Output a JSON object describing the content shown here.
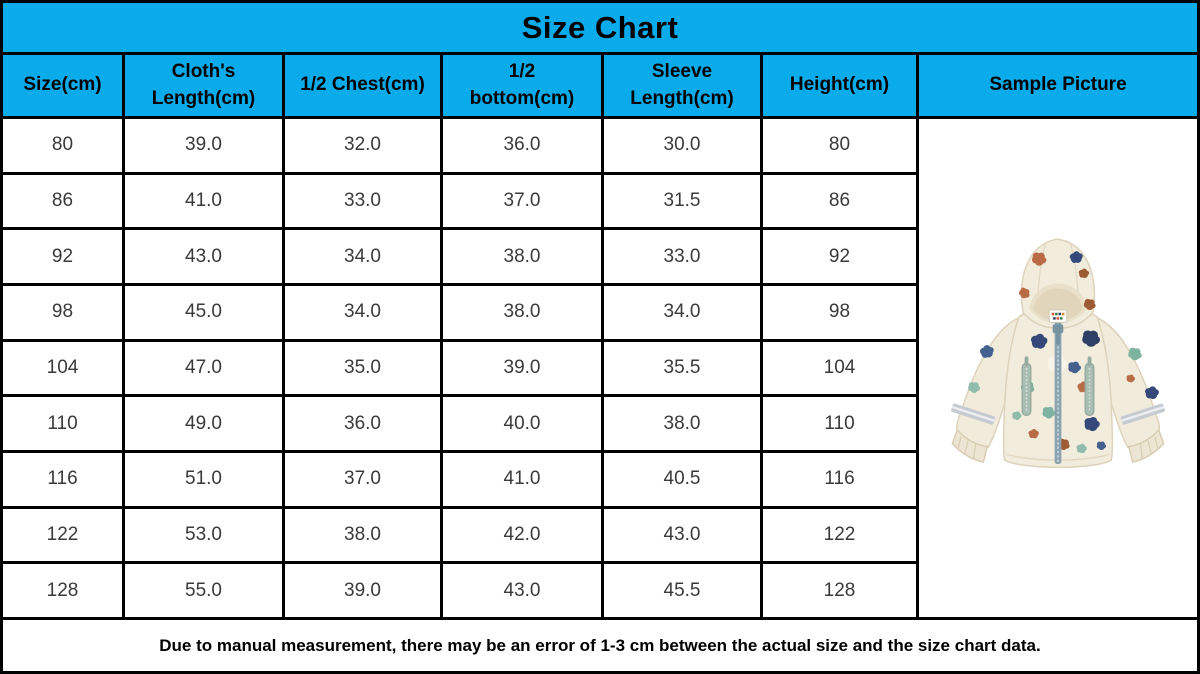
{
  "title": "Size Chart",
  "colors": {
    "accent": "#0aabea",
    "border": "#000000",
    "data_text": "#3a3a3a",
    "jacket_base": "#f2ecdd",
    "jacket_zipper": "#8ba3b0",
    "jacket_blob_navy": "#34497a",
    "jacket_blob_teal": "#7eb49f",
    "jacket_blob_rust": "#b96b46"
  },
  "table": {
    "columns": [
      "Size(cm)",
      "Cloth's\nLength(cm)",
      "1/2 Chest(cm)",
      "1/2\nbottom(cm)",
      "Sleeve\nLength(cm)",
      "Height(cm)",
      "Sample Picture"
    ],
    "rows": [
      [
        "80",
        "39.0",
        "32.0",
        "36.0",
        "30.0",
        "80"
      ],
      [
        "86",
        "41.0",
        "33.0",
        "37.0",
        "31.5",
        "86"
      ],
      [
        "92",
        "43.0",
        "34.0",
        "38.0",
        "33.0",
        "92"
      ],
      [
        "98",
        "45.0",
        "34.0",
        "38.0",
        "34.0",
        "98"
      ],
      [
        "104",
        "47.0",
        "35.0",
        "39.0",
        "35.5",
        "104"
      ],
      [
        "110",
        "49.0",
        "36.0",
        "40.0",
        "38.0",
        "110"
      ],
      [
        "116",
        "51.0",
        "37.0",
        "41.0",
        "40.5",
        "116"
      ],
      [
        "122",
        "53.0",
        "38.0",
        "42.0",
        "43.0",
        "122"
      ],
      [
        "128",
        "55.0",
        "39.0",
        "43.0",
        "45.5",
        "128"
      ]
    ]
  },
  "sample_picture": {
    "description": "cream hooded kids windbreaker jacket with multicolor blob print"
  },
  "footer_note": "Due to manual measurement, there may be an error of 1-3 cm between the actual size and the size chart data.",
  "chart_data": {
    "type": "table",
    "title": "Size Chart",
    "columns": [
      "Size(cm)",
      "Cloth's Length(cm)",
      "1/2 Chest(cm)",
      "1/2 bottom(cm)",
      "Sleeve Length(cm)",
      "Height(cm)"
    ],
    "rows": [
      [
        80,
        39.0,
        32.0,
        36.0,
        30.0,
        80
      ],
      [
        86,
        41.0,
        33.0,
        37.0,
        31.5,
        86
      ],
      [
        92,
        43.0,
        34.0,
        38.0,
        33.0,
        92
      ],
      [
        98,
        45.0,
        34.0,
        38.0,
        34.0,
        98
      ],
      [
        104,
        47.0,
        35.0,
        39.0,
        35.5,
        104
      ],
      [
        110,
        49.0,
        36.0,
        40.0,
        38.0,
        110
      ],
      [
        116,
        51.0,
        37.0,
        41.0,
        40.5,
        116
      ],
      [
        122,
        53.0,
        38.0,
        42.0,
        43.0,
        122
      ],
      [
        128,
        55.0,
        39.0,
        43.0,
        45.5,
        128
      ]
    ],
    "footer": "Due to manual measurement, there may be an error of 1-3 cm between the actual size and the size chart data."
  }
}
